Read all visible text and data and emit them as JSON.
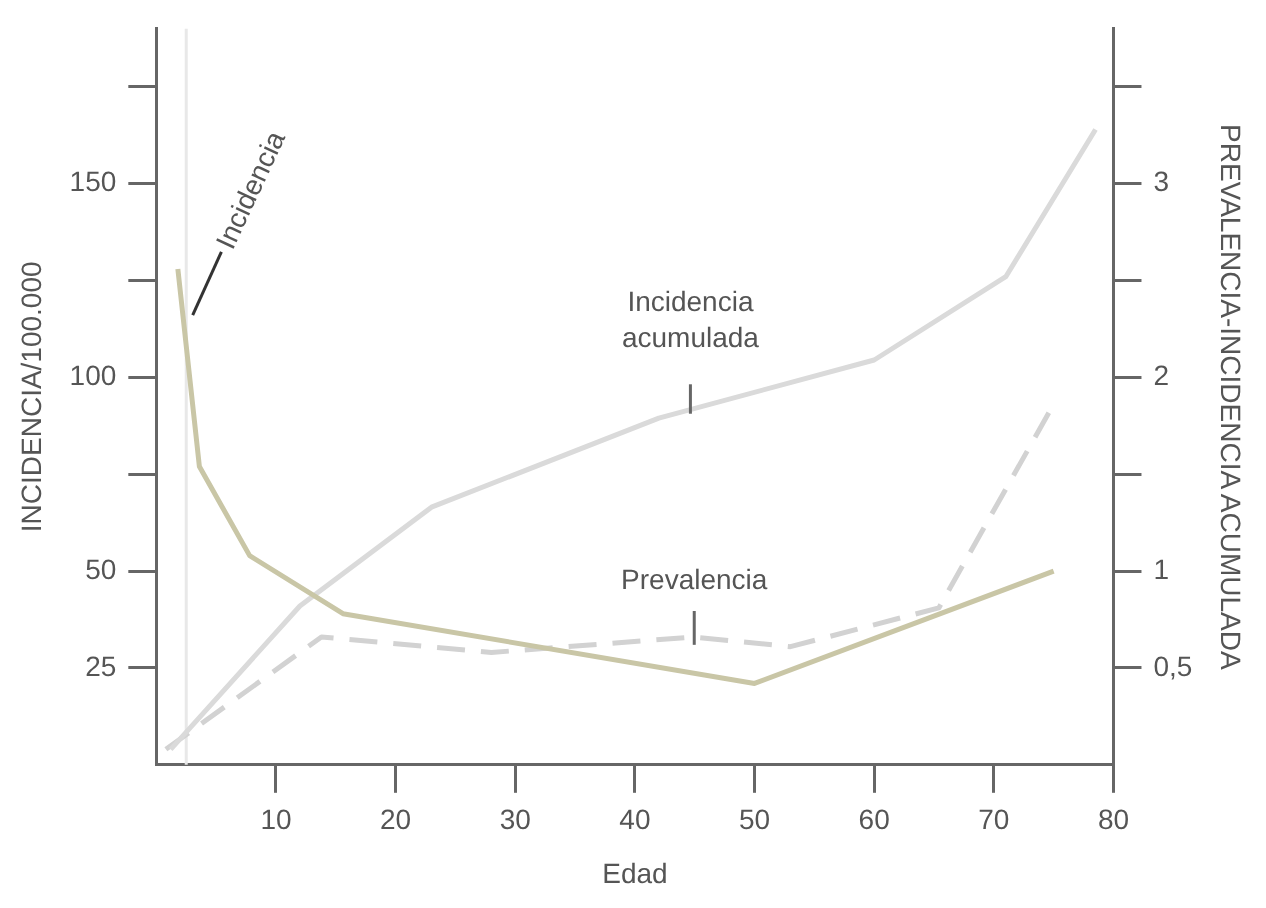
{
  "chart_data": {
    "type": "line",
    "xlabel": "Edad",
    "ylabel": "INCIDENCIA/100.000",
    "y2label": "PREVALENCIA-INCIDENCIA ACUMULADA",
    "xlim": [
      0,
      80
    ],
    "xticks": [
      10,
      20,
      30,
      40,
      50,
      60,
      70,
      80
    ],
    "ylim": [
      0,
      190
    ],
    "yticks": [
      25,
      50,
      {
        "value": 75,
        "label": null
      },
      100,
      {
        "value": 125,
        "label": null
      },
      150,
      {
        "value": 175,
        "label": null
      }
    ],
    "y2lim": [
      0,
      3.8
    ],
    "y2ticks": [
      {
        "value": 0.5,
        "label": "0,5"
      },
      1,
      {
        "value": 1.5,
        "label": null
      },
      2,
      {
        "value": 2.5,
        "label": null
      },
      3,
      {
        "value": 3.5,
        "label": null
      }
    ],
    "grid": false,
    "legend": false,
    "marker": "none",
    "ref_lines": [
      {
        "axis": "x",
        "value": 2.5,
        "color": "#e8e8e8"
      }
    ],
    "series": [
      {
        "name": "Incidencia",
        "color": "#c9c6a6",
        "line_style": "solid",
        "x": [
          1.8,
          3.6,
          7.8,
          15.6,
          50,
          75
        ],
        "values": [
          128,
          77,
          54,
          39,
          21,
          50
        ]
      },
      {
        "name": "Incidencia acumulada",
        "color": "#dadada",
        "axis": "y2",
        "line_style": "solid",
        "x": [
          1.2,
          12,
          23,
          42,
          60,
          71,
          78.5
        ],
        "values": [
          0.08,
          0.82,
          1.33,
          1.79,
          2.09,
          2.52,
          3.28
        ]
      },
      {
        "name": "Prevalencia",
        "color": "#d2d2d2",
        "axis": "y2",
        "line_style": "dashed",
        "x": [
          0.8,
          13.8,
          28,
          44.9,
          53,
          65.4,
          74.8
        ],
        "values": [
          0.08,
          0.66,
          0.58,
          0.66,
          0.61,
          0.81,
          1.84
        ]
      }
    ]
  }
}
